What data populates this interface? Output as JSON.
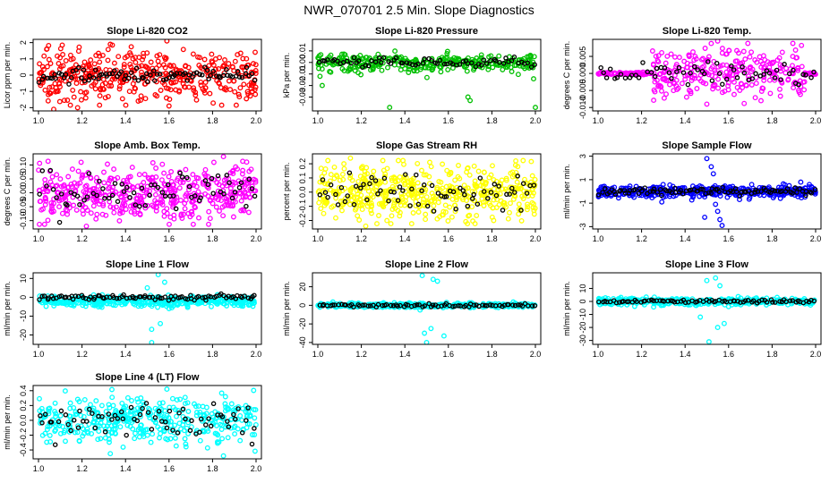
{
  "figure_title": "NWR_070701  2.5 Min. Slope Diagnostics",
  "chart_data": [
    {
      "type": "scatter",
      "title": "Slope Li-820 CO2",
      "ylabel": "Licor ppm per min.",
      "color": "#ff0000",
      "xlim": [
        1.0,
        2.0
      ],
      "ylim": [
        -2.2,
        2.2
      ],
      "xticks": [
        1.0,
        1.2,
        1.4,
        1.6,
        1.8,
        2.0
      ],
      "yticks": [
        -2,
        -1,
        0,
        1,
        2
      ],
      "ytick_labels": [
        "-2",
        "-1",
        "0",
        "1",
        "2"
      ],
      "scatter_sd": 0.75,
      "black_sd": 0.2,
      "n_color": 420,
      "n_black": 90,
      "outliers": [
        [
          1.18,
          -2.0
        ],
        [
          1.33,
          1.9
        ],
        [
          1.59,
          2.1
        ],
        [
          1.6,
          -1.9
        ],
        [
          1.07,
          -2.1
        ]
      ]
    },
    {
      "type": "scatter",
      "title": "Slope Li-820 Pressure",
      "ylabel": "kPa per min.",
      "color": "#00c000",
      "xlim": [
        1.0,
        2.0
      ],
      "ylim": [
        -0.042,
        0.02
      ],
      "xticks": [
        1.0,
        1.2,
        1.4,
        1.6,
        1.8,
        2.0
      ],
      "yticks": [
        -0.03,
        -0.02,
        -0.01,
        0.0,
        0.01
      ],
      "ytick_labels": [
        "-0.03",
        "-0.02",
        "-0.01",
        "0.00",
        "0.01"
      ],
      "scatter_sd": 0.004,
      "black_sd": 0.002,
      "n_color": 320,
      "n_black": 70,
      "outliers": [
        [
          1.33,
          -0.039
        ],
        [
          1.69,
          -0.03
        ],
        [
          1.7,
          -0.033
        ],
        [
          2.0,
          -0.039
        ],
        [
          1.02,
          -0.02
        ],
        [
          1.01,
          -0.012
        ]
      ]
    },
    {
      "type": "scatter",
      "title": "Slope Li-820 Temp.",
      "ylabel": "degrees C per min.",
      "color": "#ff00ff",
      "xlim": [
        1.0,
        2.0
      ],
      "ylim": [
        -0.011,
        0.01
      ],
      "xticks": [
        1.0,
        1.2,
        1.4,
        1.6,
        1.8,
        2.0
      ],
      "yticks": [
        -0.01,
        -0.005,
        0.0,
        0.005
      ],
      "ytick_labels": [
        "-0.010",
        "-0.005",
        "0.000",
        "0.005"
      ],
      "scatter_sd": 0.0035,
      "black_sd": 0.0015,
      "n_color": 380,
      "n_black": 60,
      "center_window": [
        1.25,
        1.95
      ],
      "outliers": [
        [
          1.52,
          0.0088
        ],
        [
          1.55,
          0.0095
        ],
        [
          1.5,
          -0.009
        ]
      ]
    },
    {
      "type": "scatter",
      "title": "Slope Amb. Box Temp.",
      "ylabel": "degrees C per min.",
      "color": "#ff00ff",
      "xlim": [
        1.0,
        2.0
      ],
      "ylim": [
        -0.13,
        0.14
      ],
      "xticks": [
        1.0,
        1.2,
        1.4,
        1.6,
        1.8,
        2.0
      ],
      "yticks": [
        -0.1,
        -0.05,
        0.0,
        0.05,
        0.1
      ],
      "ytick_labels": [
        "-0.10",
        "-0.05",
        "0.00",
        "0.05",
        "0.10"
      ],
      "scatter_sd": 0.05,
      "black_sd": 0.035,
      "n_color": 480,
      "n_black": 70,
      "outliers": [
        [
          1.22,
          -0.12
        ],
        [
          1.85,
          0.13
        ]
      ]
    },
    {
      "type": "scatter",
      "title": "Slope Gas Stream RH",
      "ylabel": "percent per min.",
      "color": "#ffff00",
      "xlim": [
        1.0,
        2.0
      ],
      "ylim": [
        -0.26,
        0.27
      ],
      "xticks": [
        1.0,
        1.2,
        1.4,
        1.6,
        1.8,
        2.0
      ],
      "yticks": [
        -0.2,
        -0.1,
        0.0,
        0.1,
        0.2
      ],
      "ytick_labels": [
        "-0.2",
        "-0.1",
        "0.0",
        "0.1",
        "0.2"
      ],
      "scatter_sd": 0.09,
      "black_sd": 0.07,
      "n_color": 520,
      "n_black": 70,
      "outliers": [
        [
          1.15,
          0.24
        ],
        [
          1.91,
          0.22
        ],
        [
          1.22,
          -0.24
        ]
      ]
    },
    {
      "type": "scatter",
      "title": "Slope Sample Flow",
      "ylabel": "ml/min per min.",
      "color": "#0000ff",
      "xlim": [
        1.0,
        2.0
      ],
      "ylim": [
        -3.2,
        3.2
      ],
      "xticks": [
        1.0,
        1.2,
        1.4,
        1.6,
        1.8,
        2.0
      ],
      "yticks": [
        -3,
        -1,
        1,
        3
      ],
      "ytick_labels": [
        "-3",
        "-1",
        "1",
        "3"
      ],
      "scatter_sd": 0.25,
      "black_sd": 0.15,
      "n_color": 400,
      "n_black": 90,
      "outliers": [
        [
          1.5,
          2.8
        ],
        [
          1.52,
          2.1
        ],
        [
          1.53,
          1.5
        ],
        [
          1.55,
          -1.7
        ],
        [
          1.56,
          -2.4
        ],
        [
          1.57,
          -2.9
        ],
        [
          1.49,
          -2.2
        ],
        [
          1.54,
          -1.1
        ]
      ]
    },
    {
      "type": "scatter",
      "title": "Slope Line 1 Flow",
      "ylabel": "ml/min per min.",
      "color": "#00ffff",
      "xlim": [
        1.0,
        2.0
      ],
      "ylim": [
        -25,
        13
      ],
      "xticks": [
        1.0,
        1.2,
        1.4,
        1.6,
        1.8,
        2.0
      ],
      "yticks": [
        -20,
        -10,
        0,
        10
      ],
      "ytick_labels": [
        "-20",
        "-10",
        "0",
        "10"
      ],
      "scatter_sd": 1.4,
      "black_sd": 0.6,
      "n_color": 420,
      "n_black": 90,
      "center_offset": -1.5,
      "outliers": [
        [
          1.52,
          -24
        ],
        [
          1.52,
          -17
        ],
        [
          1.56,
          -14
        ],
        [
          1.55,
          12
        ],
        [
          1.58,
          8
        ],
        [
          1.5,
          5
        ],
        [
          1.6,
          -6
        ]
      ]
    },
    {
      "type": "scatter",
      "title": "Slope Line 2 Flow",
      "ylabel": "ml/min per min.",
      "color": "#00ffff",
      "xlim": [
        1.0,
        2.0
      ],
      "ylim": [
        -42,
        35
      ],
      "xticks": [
        1.0,
        1.2,
        1.4,
        1.6,
        1.8,
        2.0
      ],
      "yticks": [
        -40,
        -20,
        0,
        20
      ],
      "ytick_labels": [
        "-40",
        "-20",
        "0",
        "20"
      ],
      "scatter_sd": 1.2,
      "black_sd": 0.8,
      "n_color": 400,
      "n_black": 80,
      "outliers": [
        [
          1.5,
          -40
        ],
        [
          1.49,
          -30
        ],
        [
          1.52,
          -25
        ],
        [
          1.58,
          -33
        ],
        [
          1.48,
          32
        ],
        [
          1.53,
          28
        ],
        [
          1.55,
          26
        ],
        [
          1.47,
          -5
        ]
      ]
    },
    {
      "type": "scatter",
      "title": "Slope Line 3 Flow",
      "ylabel": "ml/min per min.",
      "color": "#00ffff",
      "xlim": [
        1.0,
        2.0
      ],
      "ylim": [
        -33,
        22
      ],
      "xticks": [
        1.0,
        1.2,
        1.4,
        1.6,
        1.8,
        2.0
      ],
      "yticks": [
        -30,
        -20,
        -10,
        0,
        10
      ],
      "ytick_labels": [
        "-30",
        "-20",
        "-10",
        "0",
        "10"
      ],
      "scatter_sd": 1.3,
      "black_sd": 0.6,
      "n_color": 400,
      "n_black": 80,
      "outliers": [
        [
          1.51,
          -31
        ],
        [
          1.55,
          -20
        ],
        [
          1.58,
          -17
        ],
        [
          1.5,
          16
        ],
        [
          1.54,
          18
        ],
        [
          1.56,
          12
        ],
        [
          1.47,
          -12
        ],
        [
          1.6,
          -4
        ]
      ]
    },
    {
      "type": "scatter",
      "title": "Slope Line 4 (LT) Flow",
      "ylabel": "ml/min per min.",
      "color": "#00ffff",
      "xlim": [
        1.0,
        2.0
      ],
      "ylim": [
        -0.52,
        0.47
      ],
      "xticks": [
        1.0,
        1.2,
        1.4,
        1.6,
        1.8,
        2.0
      ],
      "yticks": [
        -0.4,
        -0.2,
        0.0,
        0.2,
        0.4
      ],
      "ytick_labels": [
        "-0.4",
        "-0.2",
        "0.0",
        "0.2",
        "0.4"
      ],
      "scatter_sd": 0.15,
      "black_sd": 0.12,
      "n_color": 400,
      "n_black": 70,
      "outliers": [
        [
          1.59,
          0.42
        ],
        [
          1.85,
          -0.48
        ],
        [
          1.33,
          -0.45
        ]
      ]
    }
  ]
}
